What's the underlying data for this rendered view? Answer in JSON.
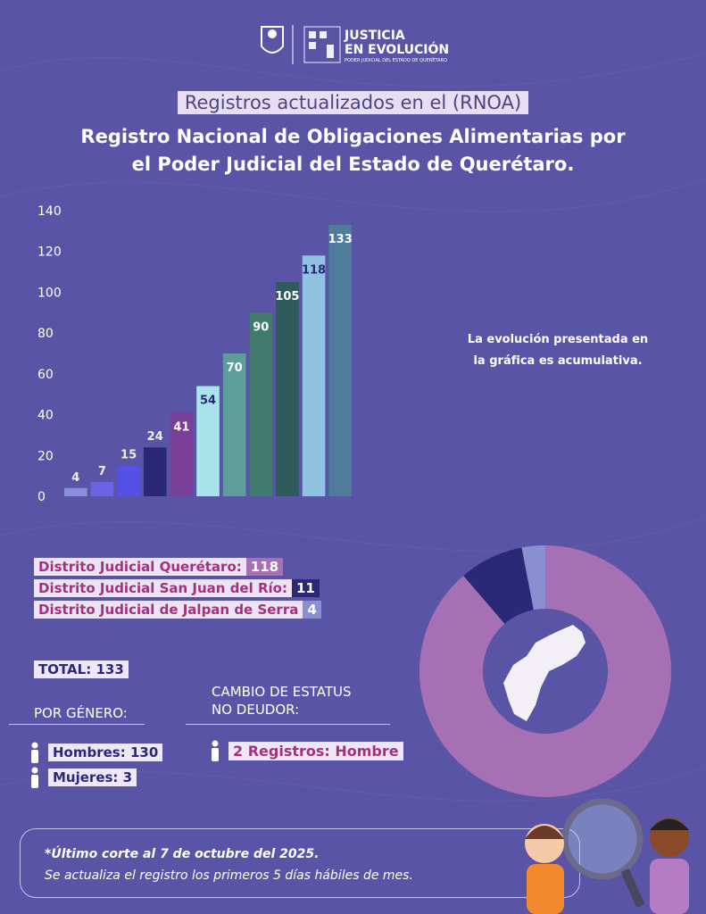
{
  "header": {
    "logo_line1": "JUSTICIA",
    "logo_line2": "EN EVOLUCIÓN",
    "logo_line3": "PODER JUDICIAL DEL ESTADO DE QUERÉTARO",
    "subtitle": "Registros actualizados en el (RNOA)",
    "title_lines": [
      "Registro Nacional de Obligaciones Alimentarias por",
      "el Poder Judicial del Estado de Querétaro."
    ]
  },
  "chart_data": [
    {
      "type": "bar",
      "annotation": "La evolución presentada en la gráfica es acumulativa.",
      "categories": [
        null,
        null,
        null,
        null,
        null,
        null,
        null,
        null,
        null,
        null,
        null
      ],
      "values": [
        4,
        7,
        15,
        24,
        41,
        54,
        70,
        90,
        105,
        118,
        133
      ],
      "colors": [
        "#8b8fe0",
        "#6a63e6",
        "#5550e6",
        "#2c2878",
        "#7a3f96",
        "#a9e4ea",
        "#5d9e9c",
        "#3f7a6c",
        "#2f5b5c",
        "#8fc3df",
        "#4f7c9a"
      ],
      "ylim": [
        0,
        140
      ],
      "yticks": [
        0,
        20,
        40,
        60,
        80,
        100,
        120,
        140
      ],
      "grid": false
    },
    {
      "type": "donut",
      "categories": [
        "Distrito Judicial Querétaro:",
        "Distrito Judicial San Juan del Río:",
        "Distrito Judicial de Jalpan de Serra"
      ],
      "values": [
        118,
        11,
        4
      ],
      "colors": [
        "#a670b4",
        "#2c2878",
        "#8a8fd2"
      ]
    }
  ],
  "total": {
    "label": "TOTAL:",
    "value": 133
  },
  "gender": {
    "title": "POR GÉNERO:",
    "items": [
      {
        "label": "Hombres:",
        "value": 130
      },
      {
        "label": "Mujeres:",
        "value": 3
      }
    ]
  },
  "status": {
    "title_lines": [
      "CAMBIO DE ESTATUS",
      "NO DEUDOR:"
    ],
    "value": 2,
    "label": "Registros: Hombre"
  },
  "footer": {
    "line1": "*Último corte al 7 de octubre del 2025.",
    "line2": "Se actualiza el registro los primeros 5 días hábiles de mes."
  }
}
